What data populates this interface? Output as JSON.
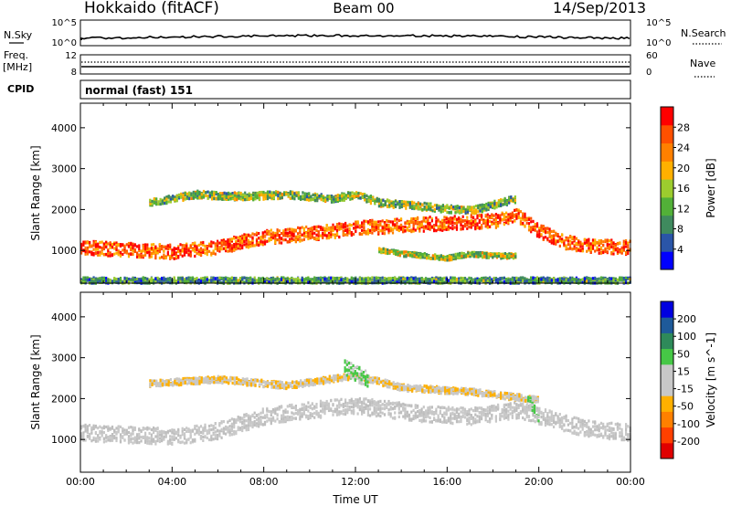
{
  "header": {
    "station": "Hokkaido (fitACF)",
    "beam": "Beam 00",
    "date": "14/Sep/2013"
  },
  "top_panels": {
    "nsky_label": "N.Sky",
    "nsearch_label": "N.Search",
    "count_ticks_left": [
      "10^5",
      "10^0"
    ],
    "count_ticks_right": [
      "10^5",
      "10^0"
    ],
    "freq_label": "Freq.",
    "freq_unit": "[MHz]",
    "freq_ticks": [
      "12",
      "8"
    ],
    "nave_label": "Nave",
    "nave_ticks": [
      "60",
      "0"
    ],
    "cpid_label": "CPID",
    "cpid_value": "normal (fast) 151"
  },
  "colors": {
    "power_scale": [
      "#0000ff",
      "#2a55a8",
      "#3f8a5e",
      "#52b038",
      "#9ccc2e",
      "#ffb000",
      "#ff8000",
      "#ff5000",
      "#ff0000"
    ],
    "velocity_scale": [
      "#e00000",
      "#ff4000",
      "#ff8000",
      "#ffb000",
      "#c8c8c8",
      "#c8c8c8",
      "#46c846",
      "#2e8a5a",
      "#1e5a9a",
      "#0000e0"
    ],
    "ground_scatter": "#bebebe"
  },
  "chart_data": [
    {
      "type": "heatmap",
      "title": "Power",
      "xlabel": "Time UT",
      "ylabel": "Slant Range [km]",
      "xlim": [
        0,
        24
      ],
      "ylim": [
        200,
        4600
      ],
      "x_ticks": [
        "00:00",
        "04:00",
        "08:00",
        "12:00",
        "16:00",
        "20:00",
        "00:00"
      ],
      "y_ticks": [
        1000,
        2000,
        3000,
        4000
      ],
      "colorbar": {
        "label": "Power [dB]",
        "tick_labels": [
          "28",
          "24",
          "20",
          "16",
          "12",
          "8",
          "4"
        ],
        "range": [
          0,
          32
        ]
      },
      "echo_bands": [
        {
          "name": "main band",
          "points": [
            [
              0,
              1100
            ],
            [
              2,
              1050
            ],
            [
              4,
              1000
            ],
            [
              6,
              1100
            ],
            [
              7,
              1250
            ],
            [
              8,
              1350
            ],
            [
              10,
              1450
            ],
            [
              11,
              1500
            ],
            [
              12,
              1600
            ],
            [
              13,
              1600
            ],
            [
              14,
              1650
            ],
            [
              16,
              1700
            ],
            [
              18,
              1750
            ],
            [
              19,
              1900
            ],
            [
              20,
              1500
            ],
            [
              21,
              1250
            ],
            [
              22,
              1150
            ],
            [
              24,
              1100
            ]
          ],
          "halfwidth_km": 170,
          "power": 26
        },
        {
          "name": "upper band",
          "points": [
            [
              3,
              2200
            ],
            [
              5,
              2400
            ],
            [
              7,
              2350
            ],
            [
              9,
              2400
            ],
            [
              11,
              2300
            ],
            [
              12,
              2400
            ],
            [
              13,
              2200
            ],
            [
              15,
              2100
            ],
            [
              17,
              2000
            ],
            [
              19,
              2300
            ]
          ],
          "halfwidth_km": 90,
          "power": 14
        },
        {
          "name": "lower band",
          "points": [
            [
              13,
              1050
            ],
            [
              14,
              950
            ],
            [
              15,
              900
            ],
            [
              16,
              850
            ],
            [
              17,
              950
            ],
            [
              18,
              900
            ],
            [
              19,
              900
            ]
          ],
          "halfwidth_km": 60,
          "power": 15
        },
        {
          "name": "near range",
          "points": [
            [
              0,
              300
            ],
            [
              24,
              300
            ]
          ],
          "halfwidth_km": 70,
          "power": 10
        }
      ]
    },
    {
      "type": "heatmap",
      "title": "Velocity",
      "xlabel": "Time UT",
      "ylabel": "Slant Range [km]",
      "xlim": [
        0,
        24
      ],
      "ylim": [
        200,
        4600
      ],
      "x_ticks": [
        "00:00",
        "04:00",
        "08:00",
        "12:00",
        "16:00",
        "20:00",
        "00:00"
      ],
      "y_ticks": [
        1000,
        2000,
        3000,
        4000
      ],
      "colorbar": {
        "label": "Velocity [m s^-1]",
        "tick_labels": [
          "200",
          "100",
          "50",
          "15",
          "-15",
          "-50",
          "-100",
          "-200"
        ],
        "range": [
          -250,
          250
        ]
      },
      "echo_bands": [
        {
          "name": "ground scatter band",
          "points": [
            [
              0,
              1200
            ],
            [
              2,
              1150
            ],
            [
              4,
              1100
            ],
            [
              6,
              1250
            ],
            [
              8,
              1600
            ],
            [
              10,
              1750
            ],
            [
              12,
              1850
            ],
            [
              13,
              1800
            ],
            [
              15,
              1650
            ],
            [
              17,
              1600
            ],
            [
              19,
              1750
            ],
            [
              20,
              1600
            ],
            [
              22,
              1300
            ],
            [
              24,
              1200
            ]
          ],
          "halfwidth_km": 200,
          "velocity": 0
        },
        {
          "name": "upper scatter",
          "points": [
            [
              3,
              2400
            ],
            [
              6,
              2500
            ],
            [
              9,
              2350
            ],
            [
              12,
              2600
            ],
            [
              14,
              2300
            ],
            [
              17,
              2200
            ],
            [
              20,
              2000
            ]
          ],
          "halfwidth_km": 80,
          "velocity": -40
        },
        {
          "name": "positive patch",
          "points": [
            [
              11.5,
              2800
            ],
            [
              12.5,
              2500
            ]
          ],
          "halfwidth_km": 200,
          "velocity": 60
        },
        {
          "name": "positive patch 2",
          "points": [
            [
              19.5,
              2000
            ],
            [
              20,
              1500
            ]
          ],
          "halfwidth_km": 150,
          "velocity": 40
        }
      ]
    }
  ]
}
